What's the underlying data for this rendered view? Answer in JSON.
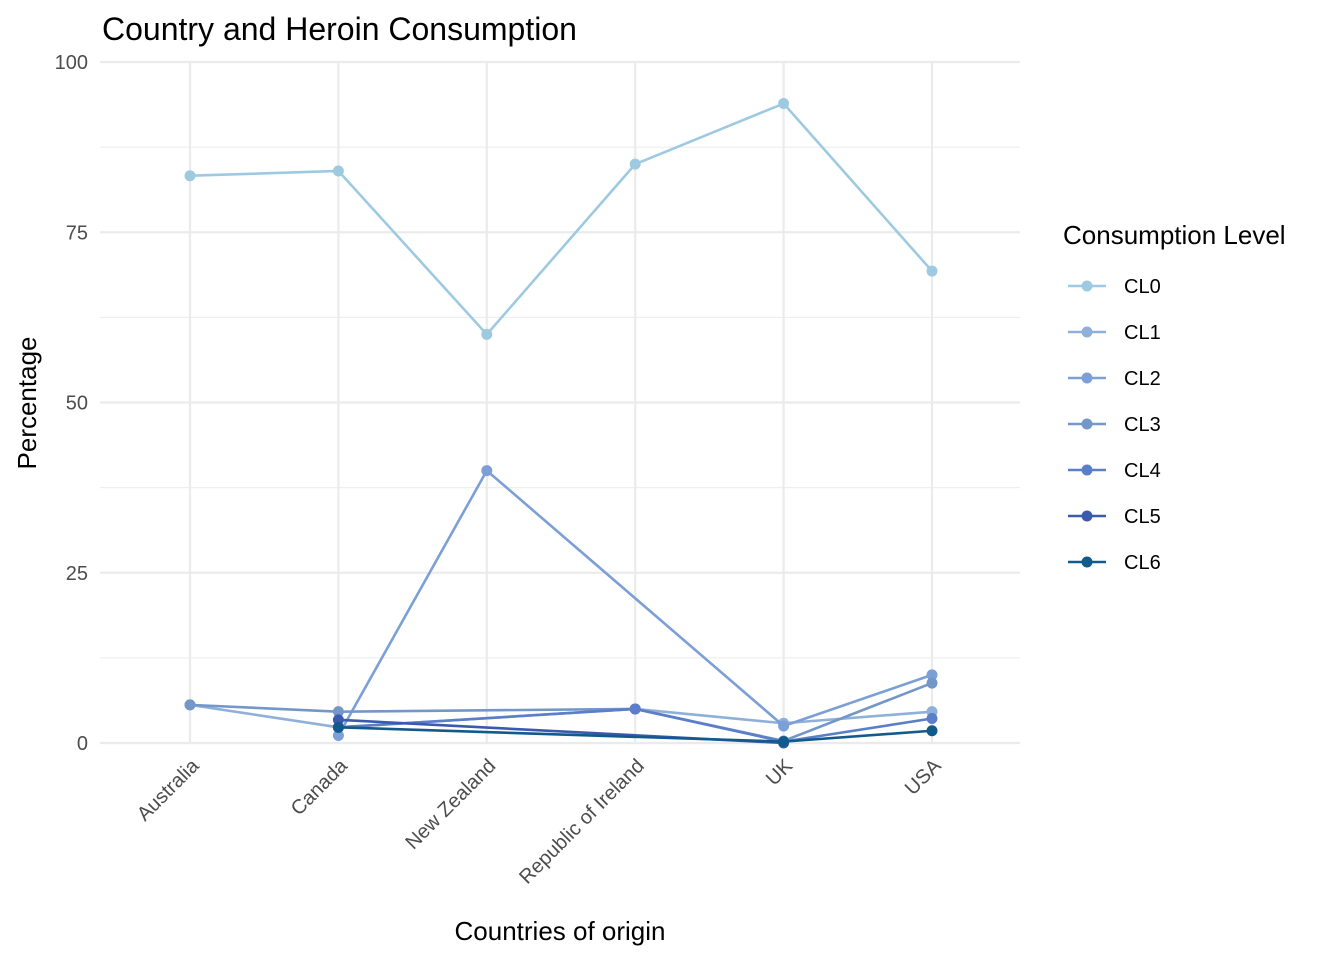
{
  "chart_data": {
    "type": "line",
    "title": "Country and Heroin Consumption",
    "xlabel": "Countries of origin",
    "ylabel": "Percentage",
    "categories": [
      "Australia",
      "Canada",
      "New Zealand",
      "Republic of Ireland",
      "UK",
      "USA"
    ],
    "ylim": [
      0,
      100
    ],
    "yticks": [
      0,
      25,
      50,
      75,
      100
    ],
    "grid": true,
    "legend": {
      "title": "Consumption Level",
      "placement": "right"
    },
    "series": [
      {
        "name": "CL0",
        "color": "#9ecae1",
        "values": [
          83.3,
          84.0,
          60.0,
          85.0,
          93.9,
          69.3
        ]
      },
      {
        "name": "CL1",
        "color": "#8fb0d8",
        "values": [
          5.6,
          2.3,
          null,
          5.0,
          2.9,
          4.6
        ]
      },
      {
        "name": "CL2",
        "color": "#7b9fd6",
        "values": [
          null,
          1.1,
          40.0,
          null,
          2.5,
          10.0
        ]
      },
      {
        "name": "CL3",
        "color": "#7297c8",
        "values": [
          5.6,
          4.6,
          null,
          5.0,
          0.3,
          8.8
        ]
      },
      {
        "name": "CL4",
        "color": "#5b7ec8",
        "values": [
          null,
          2.3,
          null,
          5.0,
          0.2,
          3.6
        ]
      },
      {
        "name": "CL5",
        "color": "#3b5aad",
        "values": [
          null,
          3.4,
          null,
          null,
          0.0,
          null
        ]
      },
      {
        "name": "CL6",
        "color": "#135a8c",
        "values": [
          null,
          2.3,
          null,
          null,
          0.2,
          1.8
        ]
      }
    ]
  }
}
